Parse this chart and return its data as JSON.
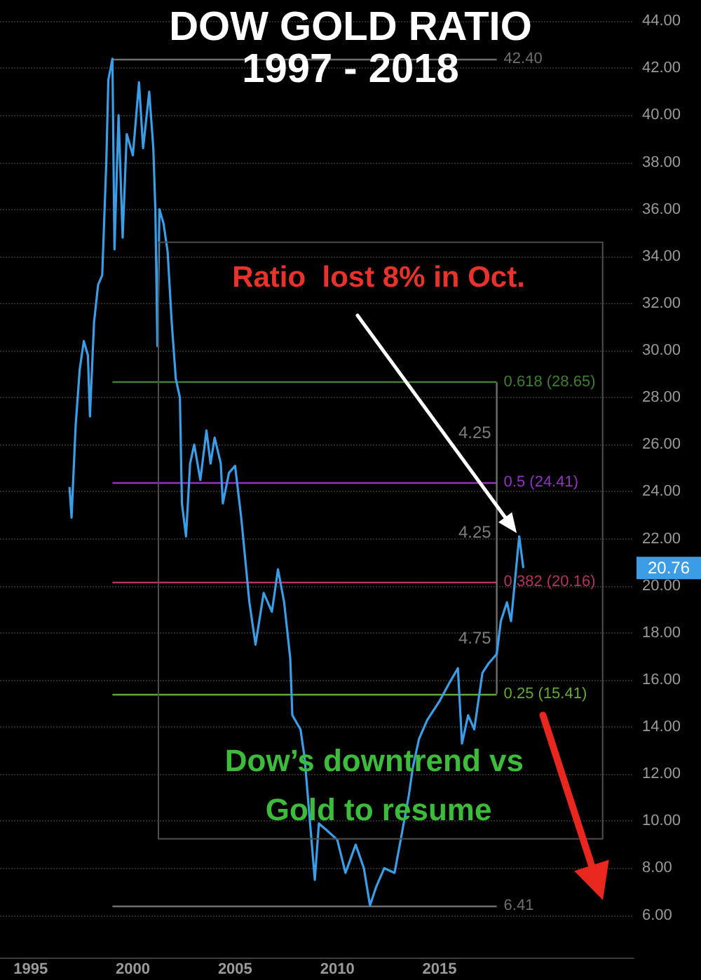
{
  "chart_data": {
    "type": "line",
    "title": "DOW GOLD RATIO",
    "subtitle": "1997 - 2018",
    "x": [
      1996.9,
      1997.0,
      1997.2,
      1997.4,
      1997.6,
      1997.8,
      1997.9,
      1998.1,
      1998.3,
      1998.5,
      1998.7,
      1998.8,
      1999.0,
      1999.1,
      1999.3,
      1999.5,
      1999.7,
      2000.0,
      2000.3,
      2000.5,
      2000.8,
      2001.0,
      2001.1,
      2001.2,
      2001.3,
      2001.5,
      2001.7,
      2001.9,
      2002.1,
      2002.3,
      2002.4,
      2002.6,
      2002.8,
      2003.0,
      2003.3,
      2003.6,
      2003.8,
      2004.0,
      2004.3,
      2004.4,
      2004.7,
      2005.0,
      2005.3,
      2005.7,
      2006.0,
      2006.4,
      2006.8,
      2007.1,
      2007.4,
      2007.7,
      2007.8,
      2008.2,
      2008.4,
      2008.9,
      2009.1,
      2009.5,
      2010.0,
      2010.4,
      2010.9,
      2011.3,
      2011.6,
      2011.9,
      2012.3,
      2012.8,
      2013.1,
      2013.5,
      2013.7,
      2014.0,
      2014.4,
      2014.7,
      2015.0,
      2015.5,
      2015.9,
      2016.1,
      2016.4,
      2016.7,
      2017.1,
      2017.4,
      2017.8,
      2018.0,
      2018.3,
      2018.5,
      2018.8,
      2018.9,
      2019.1
    ],
    "series": [
      {
        "color": "#3a9de6",
        "values": [
          24.2,
          22.9,
          26.8,
          29.2,
          30.4,
          29.8,
          27.2,
          31.2,
          32.8,
          33.2,
          38.0,
          41.5,
          42.4,
          34.3,
          40.0,
          34.8,
          39.2,
          38.3,
          41.4,
          38.6,
          41.0,
          38.6,
          36.0,
          30.2,
          36.0,
          35.4,
          34.2,
          31.2,
          28.8,
          28.0,
          23.5,
          22.1,
          25.2,
          26.0,
          24.5,
          26.6,
          25.2,
          26.3,
          25.2,
          23.5,
          24.8,
          25.1,
          22.9,
          19.3,
          17.5,
          19.7,
          18.9,
          20.7,
          19.3,
          16.9,
          14.5,
          13.9,
          12.7,
          7.5,
          9.9,
          9.6,
          9.2,
          7.8,
          9.0,
          8.0,
          6.41,
          7.2,
          8.0,
          7.8,
          9.2,
          11.1,
          12.3,
          13.5,
          14.3,
          14.7,
          15.1,
          15.9,
          16.5,
          13.3,
          14.5,
          13.9,
          16.3,
          16.7,
          17.1,
          18.5,
          19.3,
          18.5,
          21.2,
          22.1,
          20.76
        ]
      },
      {
        "type": "line",
        "color": "#6e6e6e",
        "x": [
          2017.8,
          2017.8
        ],
        "values": [
          28.65,
          15.41
        ]
      }
    ],
    "xlim": [
      1993.5,
      2024.5
    ],
    "xticks": [
      1995,
      2000,
      2005,
      2010,
      2015
    ],
    "ylim": [
      4.2,
      44.9
    ],
    "yticks": [
      {
        "value": 6,
        "label": "6.00"
      },
      {
        "value": 8,
        "label": "8.00"
      },
      {
        "value": 10,
        "label": "10.00"
      },
      {
        "value": 12,
        "label": "12.00"
      },
      {
        "value": 14,
        "label": "14.00"
      },
      {
        "value": 16,
        "label": "16.00"
      },
      {
        "value": 18,
        "label": "18.00"
      },
      {
        "value": 20,
        "label": "20.00"
      },
      {
        "value": 22,
        "label": "22.00"
      },
      {
        "value": 24,
        "label": "24.00"
      },
      {
        "value": 26,
        "label": "26.00"
      },
      {
        "value": 28,
        "label": "28.00"
      },
      {
        "value": 30,
        "label": "30.00"
      },
      {
        "value": 32,
        "label": "32.00"
      },
      {
        "value": 34,
        "label": "34.00"
      },
      {
        "value": 36,
        "label": "36.00"
      },
      {
        "value": 38,
        "label": "38.00"
      },
      {
        "value": 40,
        "label": "40.00"
      },
      {
        "value": 42,
        "label": "42.00"
      },
      {
        "value": 44,
        "label": "44.00"
      }
    ],
    "grid": "y",
    "ref_lines": [
      {
        "axis": "y",
        "value": 42.4,
        "label": "42.40",
        "color": "#6e6e6e"
      },
      {
        "axis": "y",
        "value": 28.65,
        "label": "0.618 (28.65)",
        "color": "#3f7f2f"
      },
      {
        "axis": "y",
        "value": 24.41,
        "label": "0.5 (24.41)",
        "color": "#9232c2"
      },
      {
        "axis": "y",
        "value": 20.16,
        "label": "0.382 (20.16)",
        "color": "#b53262"
      },
      {
        "axis": "y",
        "value": 15.41,
        "label": "0.25 (15.41)",
        "color": "#62aa30"
      },
      {
        "axis": "y",
        "value": 6.41,
        "label": "6.41",
        "color": "#6e6e6e"
      }
    ],
    "annotations": [
      "Ratio  lost 8% in Oct.",
      "Dow’s downtrend vs Gold to resume",
      "20.76",
      "4.25",
      "4.25",
      "4.75"
    ]
  }
}
